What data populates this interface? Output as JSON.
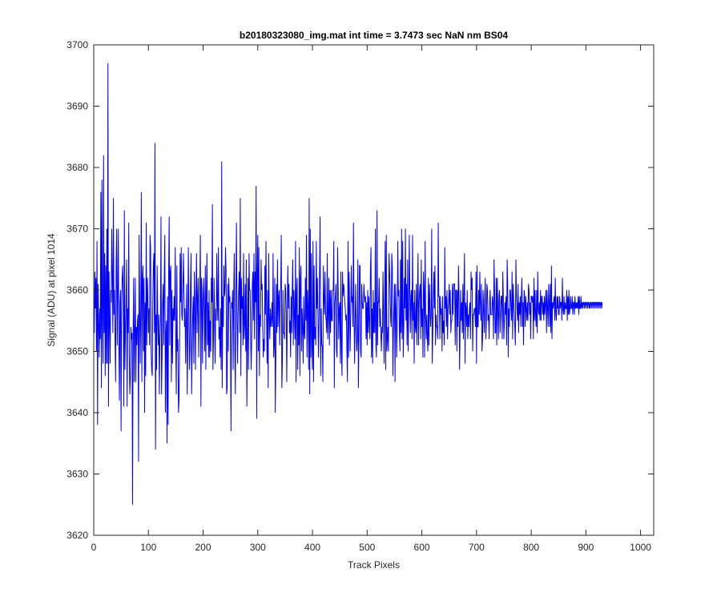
{
  "chart_data": {
    "type": "line",
    "title": "b20180323080_img.mat int time = 3.7473 sec  NaN nm BS04",
    "xlabel": "Track Pixels",
    "ylabel": "Signal (ADU) at pixel 1014",
    "xlim": [
      0,
      1024
    ],
    "ylim": [
      3620,
      3700
    ],
    "xticks": [
      0,
      100,
      200,
      300,
      400,
      500,
      600,
      700,
      800,
      900,
      1000
    ],
    "yticks": [
      3620,
      3630,
      3640,
      3650,
      3660,
      3670,
      3680,
      3690,
      3700
    ],
    "grid": false,
    "series": [
      {
        "color": "#0000ff",
        "x_start": 1,
        "x_step": 1,
        "values": [
          3653,
          3663,
          3657,
          3662,
          3650,
          3668,
          3638,
          3661,
          3655,
          3649,
          3657,
          3652,
          3676,
          3644,
          3678,
          3655,
          3648,
          3682,
          3653,
          3666,
          3646,
          3664,
          3648,
          3670,
          3648,
          3697,
          3641,
          3663,
          3655,
          3648,
          3660,
          3658,
          3670,
          3662,
          3653,
          3675,
          3656,
          3660,
          3652,
          3645,
          3664,
          3670,
          3651,
          3660,
          3670,
          3651,
          3642,
          3658,
          3660,
          3637,
          3658,
          3662,
          3664,
          3658,
          3641,
          3673,
          3647,
          3653,
          3658,
          3665,
          3641,
          3657,
          3653,
          3671,
          3649,
          3643,
          3646,
          3654,
          3652,
          3653,
          3625,
          3653,
          3662,
          3645,
          3653,
          3662,
          3645,
          3654,
          3651,
          3655,
          3656,
          3632,
          3669,
          3657,
          3648,
          3657,
          3676,
          3645,
          3662,
          3664,
          3650,
          3662,
          3640,
          3658,
          3646,
          3671,
          3651,
          3662,
          3659,
          3653,
          3657,
          3651,
          3669,
          3667,
          3650,
          3647,
          3646,
          3658,
          3664,
          3666,
          3653,
          3684,
          3634,
          3656,
          3647,
          3664,
          3656,
          3651,
          3656,
          3643,
          3652,
          3655,
          3672,
          3643,
          3649,
          3658,
          3661,
          3651,
          3662,
          3669,
          3640,
          3653,
          3655,
          3635,
          3659,
          3638,
          3663,
          3672,
          3651,
          3663,
          3664,
          3645,
          3660,
          3648,
          3657,
          3655,
          3659,
          3655,
          3667,
          3651,
          3643,
          3664,
          3650,
          3652,
          3640,
          3642,
          3651,
          3666,
          3658,
          3667,
          3656,
          3655,
          3660,
          3666,
          3660,
          3654,
          3657,
          3648,
          3655,
          3661,
          3643,
          3652,
          3667,
          3657,
          3647,
          3650,
          3661,
          3666,
          3643,
          3650,
          3656,
          3659,
          3648,
          3663,
          3658,
          3647,
          3659,
          3666,
          3653,
          3659,
          3662,
          3649,
          3656,
          3661,
          3669,
          3641,
          3662,
          3660,
          3648,
          3658,
          3662,
          3657,
          3650,
          3664,
          3647,
          3660,
          3666,
          3651,
          3658,
          3649,
          3660,
          3649,
          3655,
          3650,
          3662,
          3658,
          3674,
          3647,
          3652,
          3662,
          3655,
          3648,
          3657,
          3655,
          3666,
          3658,
          3655,
          3667,
          3652,
          3654,
          3649,
          3657,
          3647,
          3681,
          3644,
          3659,
          3654,
          3664,
          3659,
          3660,
          3667,
          3663,
          3643,
          3644,
          3661,
          3650,
          3662,
          3658,
          3659,
          3653,
          3637,
          3658,
          3657,
          3660,
          3647,
          3660,
          3666,
          3650,
          3643,
          3660,
          3671,
          3656,
          3648,
          3656,
          3660,
          3663,
          3653,
          3675,
          3646,
          3662,
          3657,
          3659,
          3651,
          3666,
          3652,
          3654,
          3661,
          3650,
          3665,
          3641,
          3651,
          3662,
          3647,
          3666,
          3660,
          3660,
          3652,
          3647,
          3653,
          3661,
          3663,
          3655,
          3666,
          3652,
          3663,
          3658,
          3677,
          3639,
          3663,
          3669,
          3650,
          3667,
          3646,
          3656,
          3654,
          3665,
          3660,
          3661,
          3654,
          3649,
          3652,
          3650,
          3664,
          3656,
          3668,
          3656,
          3648,
          3660,
          3644,
          3666,
          3656,
          3652,
          3657,
          3654,
          3655,
          3658,
          3654,
          3666,
          3649,
          3651,
          3662,
          3640,
          3649,
          3661,
          3653,
          3665,
          3654,
          3659,
          3660,
          3651,
          3658,
          3661,
          3669,
          3644,
          3648,
          3660,
          3653,
          3653,
          3652,
          3661,
          3660,
          3656,
          3645,
          3658,
          3664,
          3657,
          3661,
          3653,
          3655,
          3649,
          3659,
          3653,
          3660,
          3665,
          3651,
          3660,
          3656,
          3652,
          3668,
          3645,
          3660,
          3662,
          3647,
          3656,
          3651,
          3667,
          3646,
          3662,
          3664,
          3650,
          3657,
          3654,
          3648,
          3659,
          3653,
          3652,
          3662,
          3655,
          3669,
          3649,
          3660,
          3657,
          3647,
          3675,
          3643,
          3670,
          3649,
          3666,
          3651,
          3647,
          3668,
          3645,
          3664,
          3652,
          3654,
          3651,
          3668,
          3657,
          3662,
          3656,
          3649,
          3655,
          3663,
          3672,
          3646,
          3657,
          3651,
          3651,
          3645,
          3664,
          3659,
          3656,
          3663,
          3656,
          3655,
          3653,
          3666,
          3652,
          3656,
          3662,
          3651,
          3660,
          3653,
          3660,
          3655,
          3655,
          3660,
          3660,
          3668,
          3644,
          3658,
          3659,
          3661,
          3650,
          3649,
          3667,
          3660,
          3652,
          3657,
          3658,
          3648,
          3663,
          3650,
          3646,
          3663,
          3659,
          3661,
          3660,
          3658,
          3657,
          3655,
          3656,
          3650,
          3645,
          3668,
          3649,
          3663,
          3657,
          3650,
          3656,
          3664,
          3658,
          3659,
          3654,
          3671,
          3656,
          3648,
          3655,
          3661,
          3653,
          3650,
          3652,
          3665,
          3644,
          3652,
          3664,
          3664,
          3650,
          3649,
          3661,
          3658,
          3657,
          3657,
          3661,
          3659,
          3658,
          3659,
          3652,
          3658,
          3651,
          3660,
          3653,
          3659,
          3655,
          3652,
          3663,
          3667,
          3649,
          3657,
          3648,
          3660,
          3653,
          3658,
          3653,
          3670,
          3651,
          3649,
          3673,
          3651,
          3658,
          3658,
          3662,
          3654,
          3657,
          3653,
          3650,
          3654,
          3653,
          3663,
          3656,
          3648,
          3658,
          3668,
          3647,
          3669,
          3650,
          3652,
          3654,
          3650,
          3666,
          3663,
          3660,
          3655,
          3654,
          3666,
          3664,
          3646,
          3653,
          3657,
          3661,
          3645,
          3661,
          3657,
          3649,
          3655,
          3668,
          3659,
          3660,
          3653,
          3650,
          3665,
          3653,
          3670,
          3652,
          3668,
          3649,
          3654,
          3662,
          3657,
          3670,
          3655,
          3661,
          3651,
          3665,
          3650,
          3657,
          3669,
          3660,
          3653,
          3659,
          3660,
          3652,
          3669,
          3655,
          3658,
          3648,
          3660,
          3654,
          3653,
          3661,
          3651,
          3659,
          3666,
          3651,
          3658,
          3660,
          3661,
          3652,
          3665,
          3654,
          3657,
          3649,
          3663,
          3660,
          3649,
          3668,
          3656,
          3652,
          3656,
          3652,
          3650,
          3662,
          3651,
          3661,
          3657,
          3654,
          3656,
          3670,
          3648,
          3653,
          3659,
          3663,
          3657,
          3664,
          3651,
          3656,
          3654,
          3654,
          3652,
          3671,
          3659,
          3659,
          3652,
          3659,
          3656,
          3657,
          3650,
          3659,
          3653,
          3655,
          3651,
          3667,
          3657,
          3659,
          3654,
          3660,
          3652,
          3657,
          3658,
          3661,
          3656,
          3660,
          3653,
          3655,
          3655,
          3661,
          3656,
          3661,
          3661,
          3661,
          3651,
          3660,
          3660,
          3650,
          3660,
          3654,
          3664,
          3659,
          3647,
          3654,
          3660,
          3655,
          3658,
          3653,
          3661,
          3652,
          3660,
          3666,
          3648,
          3658,
          3657,
          3654,
          3660,
          3652,
          3656,
          3654,
          3657,
          3658,
          3652,
          3663,
          3660,
          3662,
          3650,
          3656,
          3656,
          3657,
          3657,
          3654,
          3663,
          3648,
          3664,
          3654,
          3654,
          3660,
          3656,
          3663,
          3658,
          3655,
          3661,
          3650,
          3652,
          3660,
          3657,
          3653,
          3659,
          3662,
          3652,
          3655,
          3661,
          3660,
          3655,
          3656,
          3652,
          3658,
          3660,
          3656,
          3656,
          3656,
          3659,
          3658,
          3652,
          3665,
          3660,
          3653,
          3653,
          3662,
          3651,
          3662,
          3657,
          3652,
          3659,
          3660,
          3653,
          3656,
          3659,
          3659,
          3652,
          3663,
          3659,
          3652,
          3655,
          3658,
          3656,
          3659,
          3651,
          3665,
          3661,
          3649,
          3657,
          3654,
          3660,
          3660,
          3657,
          3655,
          3663,
          3652,
          3661,
          3658,
          3656,
          3654,
          3651,
          3665,
          3659,
          3657,
          3655,
          3661,
          3653,
          3658,
          3656,
          3659,
          3654,
          3659,
          3662,
          3654,
          3658,
          3651,
          3660,
          3659,
          3654,
          3659,
          3657,
          3655,
          3658,
          3655,
          3661,
          3660,
          3656,
          3658,
          3652,
          3659,
          3659,
          3658,
          3659,
          3652,
          3662,
          3655,
          3660,
          3656,
          3654,
          3660,
          3653,
          3663,
          3657,
          3656,
          3658,
          3655,
          3660,
          3655,
          3659,
          3659,
          3656,
          3658,
          3655,
          3659,
          3656,
          3658,
          3660,
          3653,
          3660,
          3657,
          3654,
          3661,
          3658,
          3654,
          3661,
          3653,
          3664,
          3652,
          3658,
          3657,
          3658,
          3659,
          3655,
          3662,
          3656,
          3655,
          3659,
          3657,
          3659,
          3656,
          3656,
          3659,
          3657,
          3658,
          3658,
          3655,
          3662,
          3657,
          3656,
          3659,
          3656,
          3658,
          3657,
          3657,
          3660,
          3655,
          3659,
          3656,
          3660,
          3656,
          3657,
          3659,
          3657,
          3657,
          3659,
          3656,
          3658,
          3658,
          3656,
          3659,
          3657,
          3658,
          3657,
          3658,
          3657,
          3659,
          3656,
          3659,
          3657,
          3657,
          3659,
          3657,
          3658,
          3657,
          3658,
          3658,
          3657,
          3658,
          3658,
          3657,
          3658,
          3658,
          3657,
          3658,
          3658,
          3657,
          3658,
          3657,
          3658,
          3658,
          3657,
          3658,
          3658,
          3657,
          3658,
          3658,
          3657,
          3658,
          3658,
          3657,
          3658,
          3658,
          3657,
          3658,
          3658,
          3657,
          3658,
          3658,
          3657,
          3658
        ]
      }
    ]
  }
}
